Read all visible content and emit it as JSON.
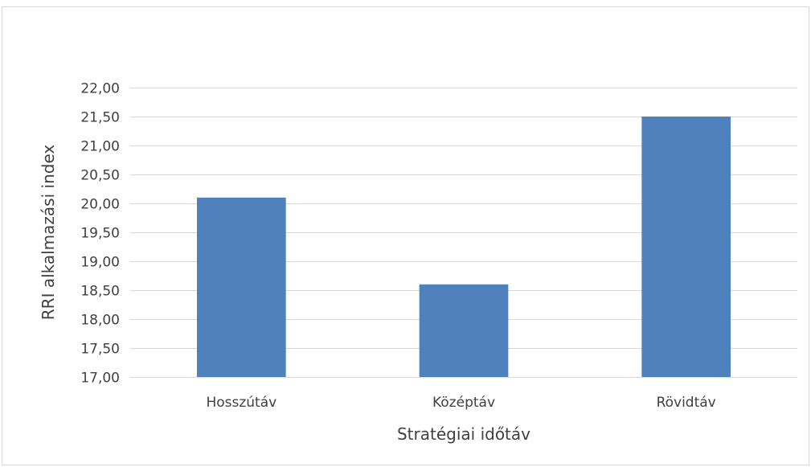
{
  "chart_data": {
    "type": "bar",
    "title": "",
    "xlabel": "Stratégiai időtáv",
    "ylabel": "RRI alkalmazási index",
    "categories": [
      "Hosszútáv",
      "Középtáv",
      "Rövidtáv"
    ],
    "values": [
      20.1,
      18.6,
      21.5
    ],
    "ylim": [
      17.0,
      22.0
    ],
    "yticks": [
      17.0,
      17.5,
      18.0,
      18.5,
      19.0,
      19.5,
      20.0,
      20.5,
      21.0,
      21.5,
      22.0
    ],
    "ytick_labels": [
      "17,00",
      "17,50",
      "18,00",
      "18,50",
      "19,00",
      "19,50",
      "20,00",
      "20,50",
      "21,00",
      "21,50",
      "22,00"
    ],
    "grid": true,
    "legend": "none",
    "bar_color": "#4f81bd",
    "grid_color": "#d9d9d9"
  }
}
